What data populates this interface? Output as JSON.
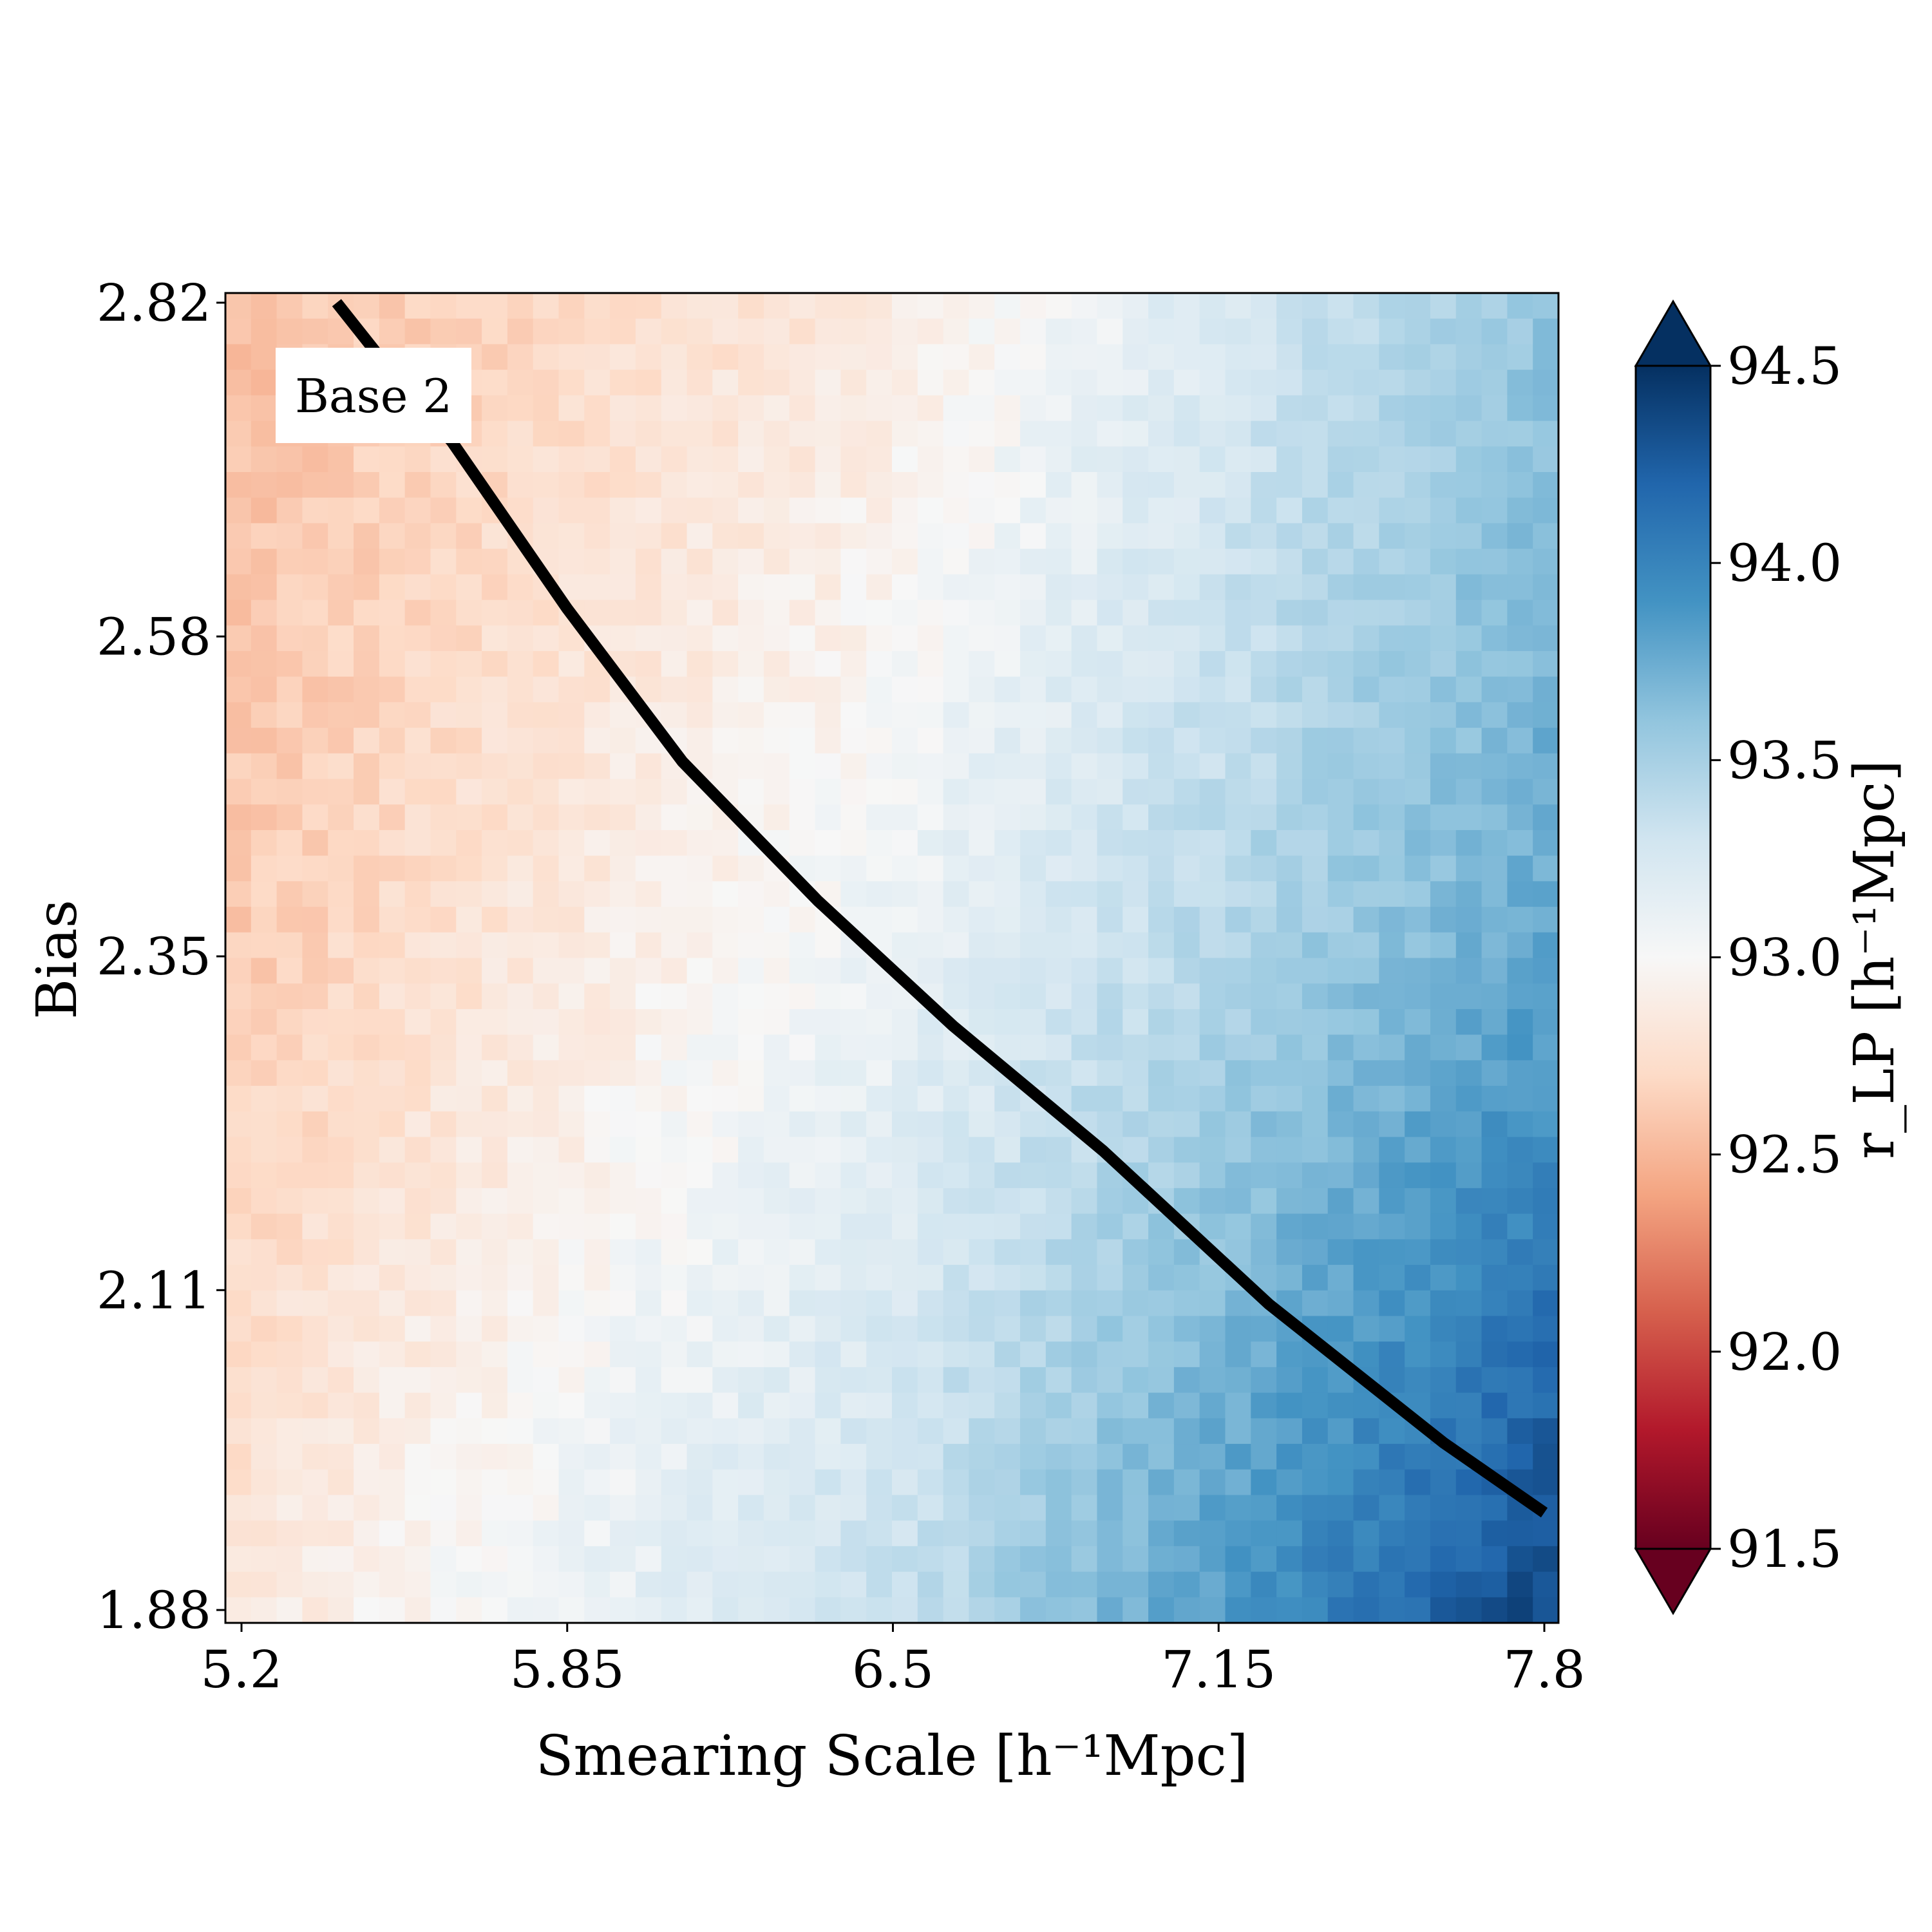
{
  "chart_data": {
    "type": "heatmap",
    "title": "",
    "xlabel": "Smearing Scale [h⁻¹Mpc]",
    "ylabel": "Bias",
    "xlim": [
      5.2,
      7.8
    ],
    "ylim": [
      1.88,
      2.82
    ],
    "xticks": [
      "5.2",
      "5.85",
      "6.5",
      "7.15",
      "7.8"
    ],
    "yticks": [
      "1.88",
      "2.11",
      "2.35",
      "2.58",
      "2.82"
    ],
    "grid": false,
    "annotation": "Base 2",
    "grid_size": {
      "nx": 52,
      "ny": 52
    },
    "colormap": "RdBu",
    "colorbar": {
      "label": "r_LP [h⁻¹Mpc]",
      "range": [
        91.5,
        94.5
      ],
      "ticks": [
        "91.5",
        "92.0",
        "92.5",
        "93.0",
        "93.5",
        "94.0",
        "94.5"
      ],
      "extend": "both",
      "colors": [
        "#67001f",
        "#b2182b",
        "#d6604d",
        "#f4a582",
        "#fddbc7",
        "#f7f7f7",
        "#d1e5f0",
        "#92c5de",
        "#4393c3",
        "#2166ac",
        "#053061"
      ]
    },
    "field_samples": [
      {
        "x": 5.2,
        "y": 2.82,
        "r": 92.55
      },
      {
        "x": 5.2,
        "y": 2.35,
        "r": 92.6
      },
      {
        "x": 5.2,
        "y": 1.88,
        "r": 92.82
      },
      {
        "x": 6.5,
        "y": 2.82,
        "r": 92.85
      },
      {
        "x": 6.5,
        "y": 2.35,
        "r": 93.1
      },
      {
        "x": 6.5,
        "y": 1.88,
        "r": 93.35
      },
      {
        "x": 7.8,
        "y": 2.82,
        "r": 93.6
      },
      {
        "x": 7.8,
        "y": 2.35,
        "r": 93.8
      },
      {
        "x": 7.8,
        "y": 1.88,
        "r": 94.4
      }
    ],
    "contour_line": {
      "color": "#000000",
      "x": [
        5.39,
        5.5,
        5.62,
        5.85,
        6.08,
        6.35,
        6.62,
        6.92,
        7.25,
        7.6,
        7.8
      ],
      "y": [
        2.82,
        2.77,
        2.72,
        2.6,
        2.49,
        2.39,
        2.3,
        2.21,
        2.1,
        2.0,
        1.95
      ]
    }
  }
}
